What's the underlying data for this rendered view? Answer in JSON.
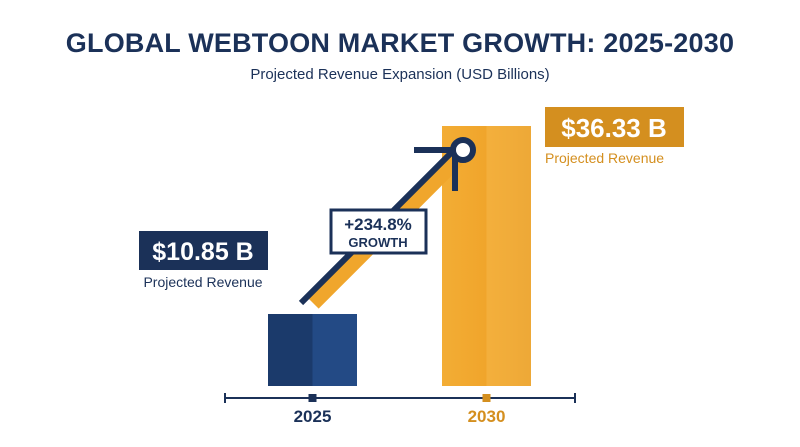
{
  "chart_data": {
    "type": "bar",
    "title": "GLOBAL WEBTOON MARKET GROWTH: 2025-2030",
    "subtitle": "Projected Revenue Expansion (USD Billions)",
    "categories": [
      "2025",
      "2030"
    ],
    "values": [
      10.85,
      36.33
    ],
    "units": "USD Billions",
    "value_labels": [
      "$10.85 B",
      "$36.33 B"
    ],
    "value_captions": [
      "Projected Revenue",
      "Projected Revenue"
    ],
    "growth_label": [
      "+234.8%",
      "GROWTH"
    ],
    "colors": {
      "bar_2025": "#1b3a6b",
      "bar_2030": "#f0a62c",
      "accent_gold": "#d48f1f",
      "navy": "#1b3158"
    }
  }
}
